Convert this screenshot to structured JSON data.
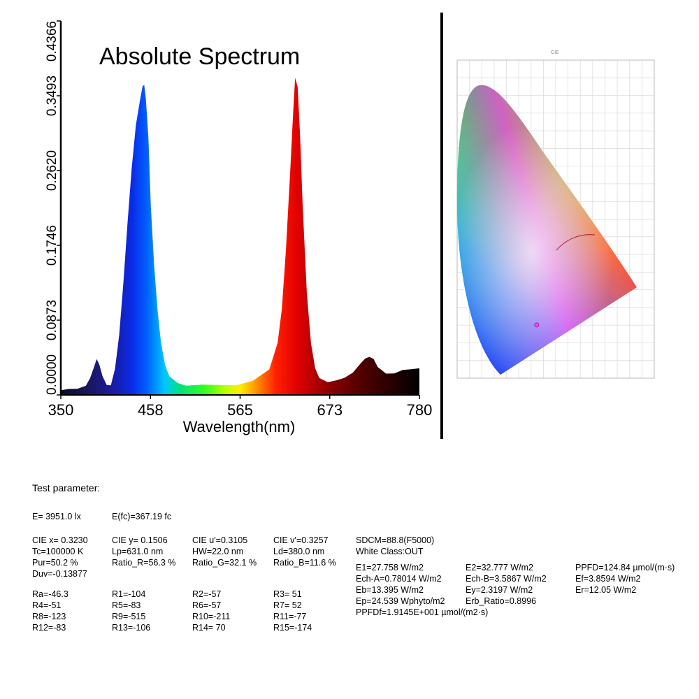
{
  "chart_data": [
    {
      "type": "area",
      "title": "Absolute Spectrum",
      "xlabel": "Wavelength(nm)",
      "ylabel": "",
      "xlim": [
        350,
        780
      ],
      "ylim": [
        0,
        0.4366
      ],
      "x_ticks": [
        "350",
        "458",
        "565",
        "673",
        "780"
      ],
      "y_ticks": [
        "0.0000",
        "0.0873",
        "0.1746",
        "0.2620",
        "0.3493",
        "0.4366"
      ],
      "fill": "wavelength-colored",
      "series": [
        {
          "x": [
            350,
            360,
            370,
            380,
            385,
            390,
            393,
            396,
            400,
            405,
            410,
            415,
            420,
            425,
            430,
            435,
            440,
            445,
            448,
            450,
            452,
            455,
            458,
            462,
            466,
            470,
            475,
            480,
            490,
            500,
            520,
            540,
            560,
            580,
            600,
            610,
            615,
            620,
            625,
            628,
            631,
            634,
            637,
            640,
            645,
            650,
            655,
            660,
            670,
            680,
            690,
            700,
            710,
            715,
            720,
            725,
            730,
            740,
            750,
            760,
            770,
            780
          ],
          "values": [
            0.006,
            0.007,
            0.008,
            0.011,
            0.019,
            0.033,
            0.041,
            0.036,
            0.022,
            0.012,
            0.012,
            0.03,
            0.07,
            0.13,
            0.2,
            0.265,
            0.315,
            0.345,
            0.36,
            0.362,
            0.345,
            0.3,
            0.22,
            0.15,
            0.1,
            0.062,
            0.035,
            0.022,
            0.013,
            0.011,
            0.012,
            0.012,
            0.012,
            0.016,
            0.03,
            0.06,
            0.1,
            0.17,
            0.26,
            0.32,
            0.37,
            0.36,
            0.3,
            0.22,
            0.12,
            0.06,
            0.032,
            0.02,
            0.015,
            0.017,
            0.019,
            0.026,
            0.037,
            0.043,
            0.045,
            0.042,
            0.033,
            0.024,
            0.025,
            0.029,
            0.03,
            0.032
          ]
        }
      ]
    },
    {
      "type": "scatter",
      "title": "CIE",
      "xlim": [
        0,
        0.8
      ],
      "ylim": [
        0,
        0.9
      ],
      "grid": true,
      "series": [
        {
          "x": [
            0.323
          ],
          "y": [
            0.1506
          ]
        }
      ]
    }
  ],
  "test_parameter": {
    "title": "Test parameter:",
    "row1": [
      "E=  3951.0 lx",
      "E(fc)=367.19 fc"
    ],
    "col1": [
      "CIE x= 0.3230",
      "Tc=100000 K",
      "Pur=50.2 %",
      "Duv=-0.13877"
    ],
    "col2": [
      "CIE y= 0.1506",
      "Lp=631.0 nm",
      "Ratio_R=56.3 %"
    ],
    "col3": [
      "CIE u'=0.3105",
      "HW=22.0 nm",
      "Ratio_G=32.1 %"
    ],
    "col4": [
      "CIE v'=0.3257",
      "Ld=380.0 nm",
      "Ratio_B=11.6 %"
    ],
    "col5_top": [
      "SDCM=88.8(F5000)",
      "White Class:OUT"
    ],
    "col5": [
      "E1=27.758 W/m2",
      "Ech-A=0.78014 W/m2",
      "Eb=13.395 W/m2",
      "Ep=24.539 Wphyto/m2",
      "PPFDf=1.9145E+001 µmol/(m2·s)"
    ],
    "col6": [
      "E2=32.777 W/m2",
      "Ech-B=3.5867 W/m2",
      "Ey=2.3197 W/m2",
      "Erb_Ratio=0.8996"
    ],
    "col7": [
      "PPFD=124.84 µmol/(m·s)",
      "Ef=3.8594 W/m2",
      "Er=12.05 W/m2"
    ],
    "r_col1": [
      "Ra=-46.3",
      "R4=-51",
      "R8=-123",
      "R12=-83"
    ],
    "r_col2": [
      "R1=-104",
      "R5=-83",
      "R9=-515",
      "R13=-106"
    ],
    "r_col3": [
      "R2=-57",
      "R6=-57",
      "R10=-211",
      "R14= 70"
    ],
    "r_col4": [
      "R3= 51",
      "R7= 52",
      "R11=-77",
      "R15=-174"
    ]
  }
}
